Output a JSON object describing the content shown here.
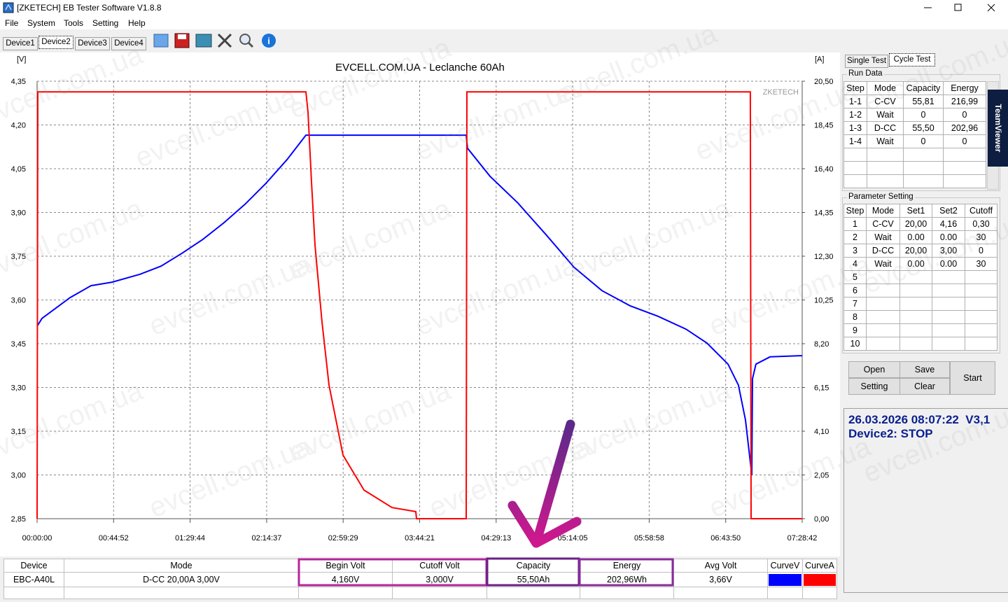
{
  "window": {
    "title": "[ZKETECH] EB Tester Software V1.8.8"
  },
  "menu": [
    "File",
    "System",
    "Tools",
    "Setting",
    "Help"
  ],
  "device_tabs": [
    "Device1",
    "Device2",
    "Device3",
    "Device4"
  ],
  "chart_data": {
    "type": "line",
    "title": "EVCELL.COM.UA - Leclanche 60Ah",
    "y_label": "[V]",
    "y2_label": "[A]",
    "watermark": "ZKETECH",
    "grid": true,
    "xlim": [
      0,
      26922
    ],
    "xticks": [
      {
        "value": 0,
        "label": "00:00:00"
      },
      {
        "value": 2692,
        "label": "00:44:52"
      },
      {
        "value": 5384,
        "label": "01:29:44"
      },
      {
        "value": 8077,
        "label": "02:14:37"
      },
      {
        "value": 10769,
        "label": "02:59:29"
      },
      {
        "value": 13461,
        "label": "03:44:21"
      },
      {
        "value": 16153,
        "label": "04:29:13"
      },
      {
        "value": 18845,
        "label": "05:14:05"
      },
      {
        "value": 21538,
        "label": "05:58:58"
      },
      {
        "value": 24230,
        "label": "06:43:50"
      },
      {
        "value": 26922,
        "label": "07:28:42"
      }
    ],
    "ylim": [
      2.85,
      4.35
    ],
    "yticks": [
      {
        "value": 2.85,
        "label": "2,85"
      },
      {
        "value": 3.0,
        "label": "3,00"
      },
      {
        "value": 3.15,
        "label": "3,15"
      },
      {
        "value": 3.3,
        "label": "3,30"
      },
      {
        "value": 3.45,
        "label": "3,45"
      },
      {
        "value": 3.6,
        "label": "3,60"
      },
      {
        "value": 3.75,
        "label": "3,75"
      },
      {
        "value": 3.9,
        "label": "3,90"
      },
      {
        "value": 4.05,
        "label": "4,05"
      },
      {
        "value": 4.2,
        "label": "4,20"
      },
      {
        "value": 4.35,
        "label": "4,35"
      }
    ],
    "y2lim": [
      0,
      20.5
    ],
    "y2ticks": [
      {
        "value": 0,
        "label": "0,00"
      },
      {
        "value": 2.05,
        "label": "2,05"
      },
      {
        "value": 4.1,
        "label": "4,10"
      },
      {
        "value": 6.15,
        "label": "6,15"
      },
      {
        "value": 8.2,
        "label": "8,20"
      },
      {
        "value": 10.25,
        "label": "10,25"
      },
      {
        "value": 12.3,
        "label": "12,30"
      },
      {
        "value": 14.35,
        "label": "14,35"
      },
      {
        "value": 16.4,
        "label": "16,40"
      },
      {
        "value": 18.45,
        "label": "18,45"
      },
      {
        "value": 20.5,
        "label": "20,50"
      }
    ],
    "series": [
      {
        "name": "CurveV",
        "color": "#0000ff",
        "x": [
          0,
          172,
          1158,
          1897,
          2635,
          3620,
          4360,
          5098,
          5837,
          6576,
          7315,
          8054,
          8793,
          9458,
          15098,
          15147,
          15936,
          16921,
          17906,
          18891,
          19876,
          20862,
          21847,
          22832,
          23571,
          24310,
          24679,
          24926,
          25098,
          25148,
          25172,
          25295,
          25788,
          26921
        ],
        "values": [
          3.51,
          3.537,
          3.608,
          3.649,
          3.661,
          3.688,
          3.716,
          3.76,
          3.808,
          3.865,
          3.928,
          4.0,
          4.081,
          4.165,
          4.165,
          4.12,
          4.024,
          3.932,
          3.824,
          3.712,
          3.632,
          3.58,
          3.544,
          3.5,
          3.452,
          3.38,
          3.308,
          3.188,
          3.044,
          3.0,
          3.33,
          3.38,
          3.405,
          3.409
        ]
      },
      {
        "name": "CurveA",
        "color": "#ff0000",
        "axis": "y2",
        "x": [
          0,
          25,
          9458,
          9532,
          9655,
          9778,
          10024,
          10271,
          10763,
          11502,
          12487,
          13325,
          13349,
          15098,
          15123,
          25098,
          25123,
          26921
        ],
        "values": [
          0,
          20,
          20,
          19.06,
          15.78,
          12.82,
          9.22,
          6.26,
          2.98,
          1.34,
          0.52,
          0.33,
          0,
          0,
          20,
          20,
          0,
          0
        ]
      }
    ]
  },
  "panel": {
    "tabs": [
      "Single Test",
      "Cycle Test"
    ],
    "run_data": {
      "title": "Run Data",
      "columns": [
        "Step",
        "Mode",
        "Capacity",
        "Energy"
      ],
      "rows": [
        [
          "1-1",
          "C-CV",
          "55,81",
          "216,99"
        ],
        [
          "1-2",
          "Wait",
          "0",
          "0"
        ],
        [
          "1-3",
          "D-CC",
          "55,50",
          "202,96"
        ],
        [
          "1-4",
          "Wait",
          "0",
          "0"
        ]
      ]
    },
    "parameter_setting": {
      "title": "Parameter Setting",
      "columns": [
        "Step",
        "Mode",
        "Set1",
        "Set2",
        "Cutoff"
      ],
      "rows": [
        [
          "1",
          "C-CV",
          "20,00",
          "4,16",
          "0,30"
        ],
        [
          "2",
          "Wait",
          "0.00",
          "0.00",
          "30"
        ],
        [
          "3",
          "D-CC",
          "20,00",
          "3,00",
          "0"
        ],
        [
          "4",
          "Wait",
          "0.00",
          "0.00",
          "30"
        ],
        [
          "5"
        ],
        [
          "6"
        ],
        [
          "7"
        ],
        [
          "8"
        ],
        [
          "9"
        ],
        [
          "10"
        ]
      ]
    },
    "buttons": {
      "open": "Open",
      "save": "Save",
      "setting": "Setting",
      "clear": "Clear",
      "start": "Start"
    }
  },
  "status": {
    "line1": "26.03.2026 08:07:22  V3,1",
    "line2": "Device2: STOP"
  },
  "teamviewer": "TeamViewer",
  "summary": {
    "columns": [
      "Device",
      "Mode",
      "Begin Volt",
      "Cutoff Volt",
      "Capacity",
      "Energy",
      "Avg Volt",
      "CurveV",
      "CurveA"
    ],
    "row": [
      "EBC-A40L",
      "D-CC  20,00A  3,00V",
      "4,160V",
      "3,000V",
      "55,50Ah",
      "202,96Wh",
      "3,66V"
    ]
  },
  "watermark": "evcell.com.ua"
}
